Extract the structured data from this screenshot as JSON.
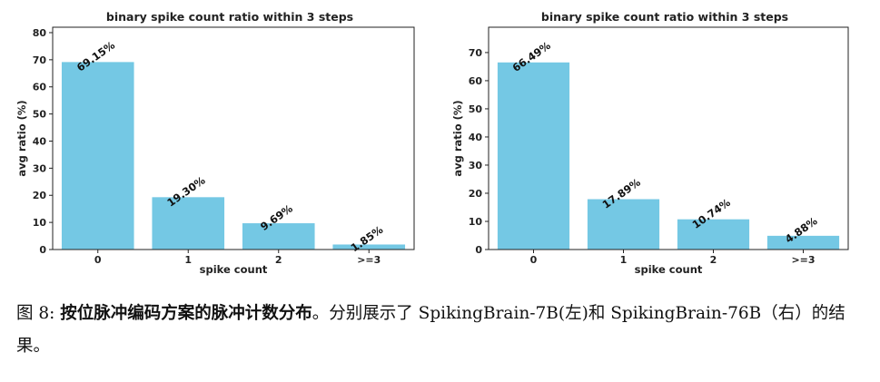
{
  "chart_data": [
    {
      "type": "bar",
      "title": "binary spike count ratio within 3 steps",
      "xlabel": "spike count",
      "ylabel": "avg ratio (%)",
      "categories": [
        "0",
        "1",
        "2",
        ">=3"
      ],
      "values": [
        69.15,
        19.3,
        9.69,
        1.85
      ],
      "data_labels": [
        "69.15%",
        "19.30%",
        "9.69%",
        "1.85%"
      ],
      "ylim": [
        0,
        82
      ],
      "yticks": [
        0,
        10,
        20,
        30,
        40,
        50,
        60,
        70,
        80
      ],
      "color": "#74c8e4",
      "grid": false
    },
    {
      "type": "bar",
      "title": "binary spike count ratio within 3 steps",
      "xlabel": "spike count",
      "ylabel": "avg ratio (%)",
      "categories": [
        "0",
        "1",
        "2",
        ">=3"
      ],
      "values": [
        66.49,
        17.89,
        10.74,
        4.88
      ],
      "data_labels": [
        "66.49%",
        "17.89%",
        "10.74%",
        "4.88%"
      ],
      "ylim": [
        0,
        79
      ],
      "yticks": [
        0,
        10,
        20,
        30,
        40,
        50,
        60,
        70
      ],
      "color": "#74c8e4",
      "grid": false
    }
  ],
  "caption": {
    "prefix": "图 8: ",
    "bold": "按位脉冲编码方案的脉冲计数分布",
    "rest": "。分别展示了 SpikingBrain-7B(左)和 SpikingBrain-76B（右）的结果。"
  }
}
